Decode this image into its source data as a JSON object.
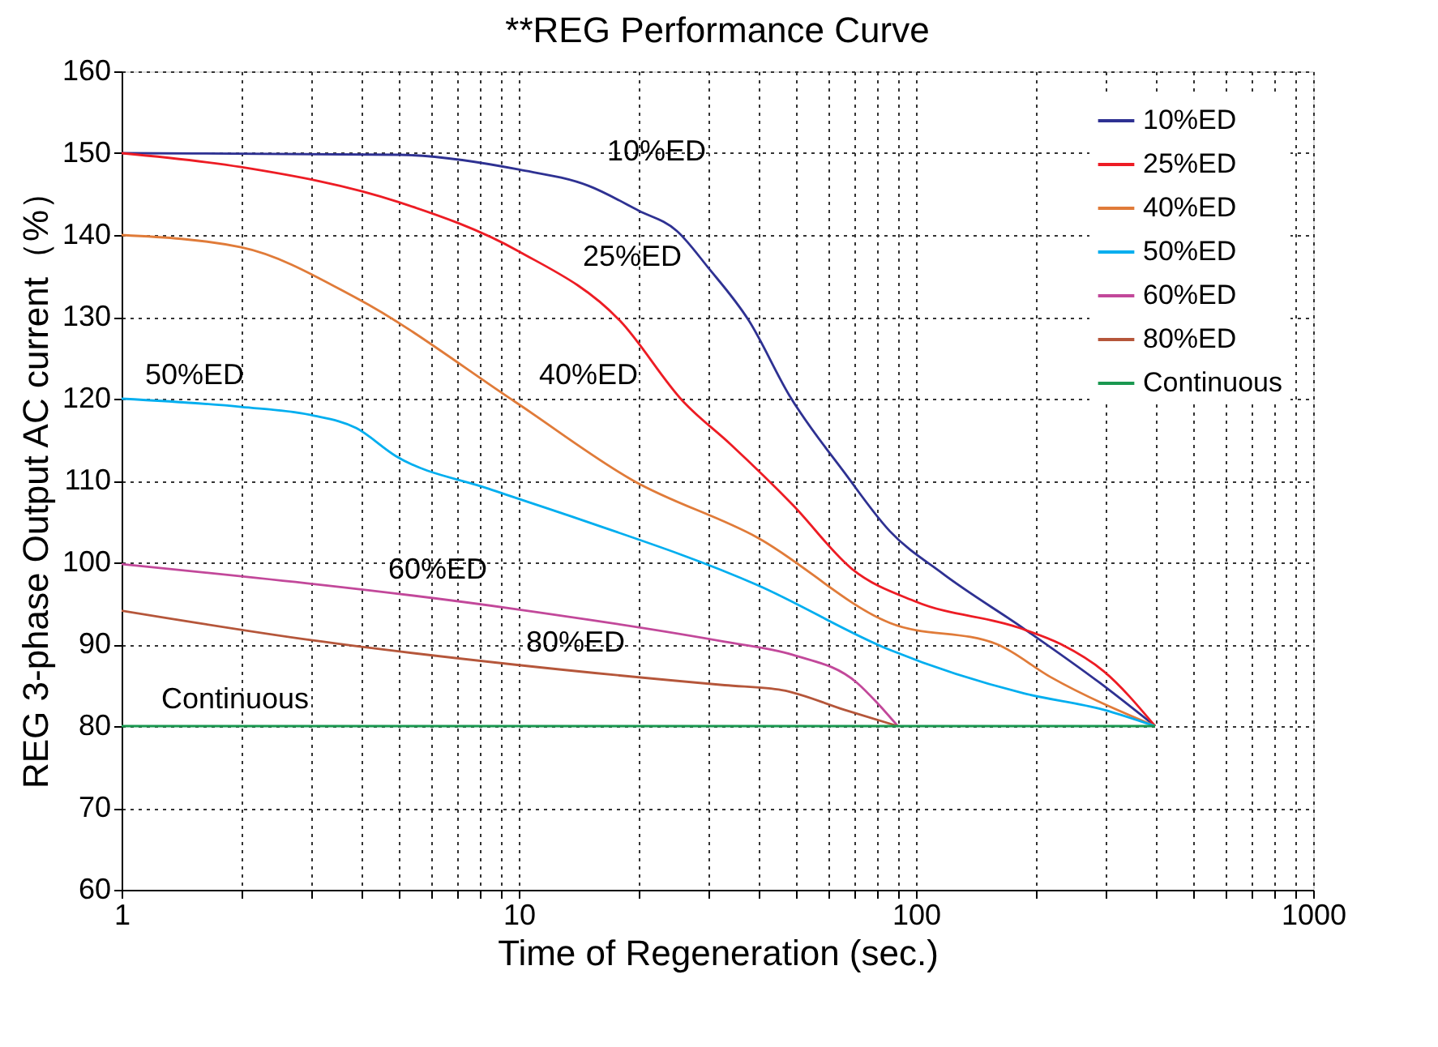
{
  "chart_data": {
    "type": "line",
    "title": "**REG Performance Curve",
    "xlabel": "Time of Regeneration (sec.)",
    "ylabel": "REG 3-phase Output AC current（%）",
    "log": "x",
    "grid": true,
    "legend": "top right",
    "line_style": "solid",
    "marker": "none",
    "xlim": [
      1,
      1000
    ],
    "ylim": [
      60,
      160
    ],
    "xticks": [
      1,
      {
        "value": 2,
        "label": null
      },
      {
        "value": 3,
        "label": null
      },
      {
        "value": 4,
        "label": null
      },
      {
        "value": 5,
        "label": null
      },
      {
        "value": 6,
        "label": null
      },
      {
        "value": 7,
        "label": null
      },
      {
        "value": 8,
        "label": null
      },
      {
        "value": 9,
        "label": null
      },
      10,
      {
        "value": 20,
        "label": null
      },
      {
        "value": 30,
        "label": null
      },
      {
        "value": 40,
        "label": null
      },
      {
        "value": 50,
        "label": null
      },
      {
        "value": 60,
        "label": null
      },
      {
        "value": 70,
        "label": null
      },
      {
        "value": 80,
        "label": null
      },
      {
        "value": 90,
        "label": null
      },
      100,
      {
        "value": 200,
        "label": null
      },
      {
        "value": 300,
        "label": null
      },
      {
        "value": 400,
        "label": null
      },
      {
        "value": 500,
        "label": null
      },
      {
        "value": 600,
        "label": null
      },
      {
        "value": 700,
        "label": null
      },
      {
        "value": 800,
        "label": null
      },
      {
        "value": 900,
        "label": null
      },
      1000
    ],
    "yticks": [
      60,
      70,
      80,
      90,
      100,
      110,
      120,
      130,
      140,
      150,
      160
    ],
    "series": [
      {
        "name": "10%ED",
        "color": "#2e3192",
        "x": [
          1,
          5,
          10,
          15,
          20,
          25,
          30,
          38,
          48,
          66,
          86,
          117,
          187,
          290,
          400
        ],
        "values": [
          150,
          149.8,
          148,
          146,
          143,
          140.5,
          136,
          129.5,
          120.4,
          111,
          103.8,
          98.6,
          91.9,
          85.3,
          80
        ]
      },
      {
        "name": "25%ED",
        "color": "#ed1c24",
        "x": [
          1,
          2,
          5,
          10,
          18,
          26,
          34,
          49,
          69,
          100,
          182,
          232,
          297,
          400
        ],
        "values": [
          150,
          148.3,
          144,
          138,
          129.5,
          119.6,
          114.5,
          107,
          99.2,
          95.2,
          92,
          90,
          86.7,
          80
        ]
      },
      {
        "name": "40%ED",
        "color": "#e07b39",
        "x": [
          1,
          2,
          3.9,
          9.8,
          19.4,
          40,
          86,
          160,
          218,
          400
        ],
        "values": [
          140,
          138.5,
          132.3,
          119.6,
          110,
          103,
          92.6,
          90,
          86,
          80
        ]
      },
      {
        "name": "50%ED",
        "color": "#00aeef",
        "x": [
          1,
          2,
          3,
          3.9,
          4.9,
          8.4,
          13.4,
          40,
          86,
          187,
          297,
          400
        ],
        "values": [
          120,
          119,
          118,
          116.4,
          113,
          109,
          105.7,
          97.2,
          89.3,
          84,
          82,
          80
        ]
      },
      {
        "name": "60%ED",
        "color": "#c2489a",
        "x": [
          1,
          9.8,
          33,
          49,
          71,
          80,
          90
        ],
        "values": [
          99.8,
          94.3,
          90.3,
          88.7,
          85.3,
          82.8,
          80
        ]
      },
      {
        "name": "80%ED",
        "color": "#b5563a",
        "x": [
          1,
          3,
          9.8,
          33,
          46,
          66,
          90
        ],
        "values": [
          94.1,
          90.5,
          87.5,
          85,
          84.4,
          82,
          80
        ]
      },
      {
        "name": "Continuous",
        "color": "#1a9850",
        "x": [
          1,
          400
        ],
        "values": [
          80,
          80
        ]
      }
    ],
    "annotations": [
      "10%ED",
      "25%ED",
      "40%ED",
      "50%ED",
      "60%ED",
      "80%ED",
      "Continuous"
    ]
  }
}
